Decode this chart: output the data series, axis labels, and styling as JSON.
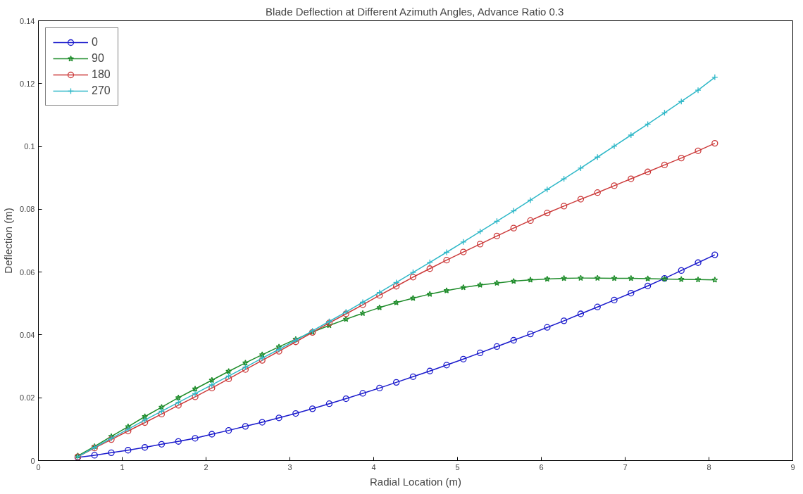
{
  "chart_data": {
    "type": "line",
    "title": "Blade Deflection at Different Azimuth Angles, Advance Ratio 0.3",
    "xlabel": "Radial Location (m)",
    "ylabel": "Deflection (m)",
    "x": [
      0.47,
      0.67,
      0.87,
      1.07,
      1.27,
      1.47,
      1.67,
      1.87,
      2.07,
      2.27,
      2.47,
      2.67,
      2.87,
      3.07,
      3.27,
      3.47,
      3.67,
      3.87,
      4.07,
      4.27,
      4.47,
      4.67,
      4.87,
      5.07,
      5.27,
      5.47,
      5.67,
      5.87,
      6.07,
      6.27,
      6.47,
      6.67,
      6.87,
      7.07,
      7.27,
      7.47,
      7.67,
      7.87,
      8.07
    ],
    "series": [
      {
        "name": "0",
        "color": "#1a1acc",
        "marker": "circle",
        "values": [
          0.001,
          0.0017,
          0.0025,
          0.0033,
          0.0042,
          0.0052,
          0.0061,
          0.0071,
          0.0084,
          0.0096,
          0.0109,
          0.0122,
          0.0136,
          0.015,
          0.0165,
          0.0181,
          0.0197,
          0.0214,
          0.0231,
          0.0249,
          0.0267,
          0.0285,
          0.0304,
          0.0323,
          0.0343,
          0.0363,
          0.0383,
          0.0403,
          0.0424,
          0.0445,
          0.0467,
          0.0489,
          0.0511,
          0.0533,
          0.0556,
          0.058,
          0.0605,
          0.063,
          0.0655
        ]
      },
      {
        "name": "90",
        "color": "#1e8c2a",
        "marker": "star",
        "values": [
          0.0015,
          0.0045,
          0.0077,
          0.0108,
          0.014,
          0.017,
          0.02,
          0.0228,
          0.0256,
          0.0284,
          0.0311,
          0.0337,
          0.0362,
          0.0386,
          0.0409,
          0.043,
          0.045,
          0.0469,
          0.0487,
          0.0503,
          0.0517,
          0.053,
          0.0541,
          0.0551,
          0.0559,
          0.0565,
          0.0571,
          0.0575,
          0.0578,
          0.058,
          0.0581,
          0.0581,
          0.058,
          0.058,
          0.0579,
          0.0578,
          0.0577,
          0.0576,
          0.0575
        ]
      },
      {
        "name": "180",
        "color": "#cc3a3a",
        "marker": "circle",
        "values": [
          0.0012,
          0.004,
          0.0067,
          0.0094,
          0.0121,
          0.0148,
          0.0176,
          0.0203,
          0.0231,
          0.026,
          0.029,
          0.0319,
          0.0348,
          0.0378,
          0.0408,
          0.0438,
          0.0467,
          0.0496,
          0.0526,
          0.0555,
          0.0584,
          0.0611,
          0.0638,
          0.0664,
          0.0689,
          0.0715,
          0.074,
          0.0764,
          0.0788,
          0.081,
          0.0832,
          0.0853,
          0.0875,
          0.0897,
          0.0919,
          0.0941,
          0.0963,
          0.0986,
          0.101
        ]
      },
      {
        "name": "270",
        "color": "#2fb8c8",
        "marker": "cross",
        "values": [
          0.0012,
          0.0042,
          0.0071,
          0.01,
          0.0129,
          0.0157,
          0.0185,
          0.0213,
          0.0241,
          0.0269,
          0.0297,
          0.0326,
          0.0354,
          0.0383,
          0.0413,
          0.0443,
          0.0473,
          0.0504,
          0.0535,
          0.0567,
          0.0599,
          0.0631,
          0.0663,
          0.0696,
          0.0729,
          0.0762,
          0.0795,
          0.0829,
          0.0863,
          0.0897,
          0.0931,
          0.0966,
          0.1001,
          0.1036,
          0.1071,
          0.1107,
          0.1143,
          0.1179,
          0.122
        ]
      }
    ],
    "xlim": [
      0,
      9
    ],
    "xticks": [
      0,
      1,
      2,
      3,
      4,
      5,
      6,
      7,
      8,
      9
    ],
    "ylim": [
      0,
      0.14
    ],
    "yticks": [
      {
        "value": 0,
        "label": "0"
      },
      {
        "value": 0.02,
        "label": "0.02"
      },
      {
        "value": 0.04,
        "label": "0.04"
      },
      {
        "value": 0.06,
        "label": "0.06"
      },
      {
        "value": 0.08,
        "label": "0.08"
      },
      {
        "value": 0.1,
        "label": "0.1"
      },
      {
        "value": 0.12,
        "label": "0.12"
      },
      {
        "value": 0.14,
        "label": "0.14"
      }
    ],
    "grid": false,
    "legend": "top left"
  }
}
